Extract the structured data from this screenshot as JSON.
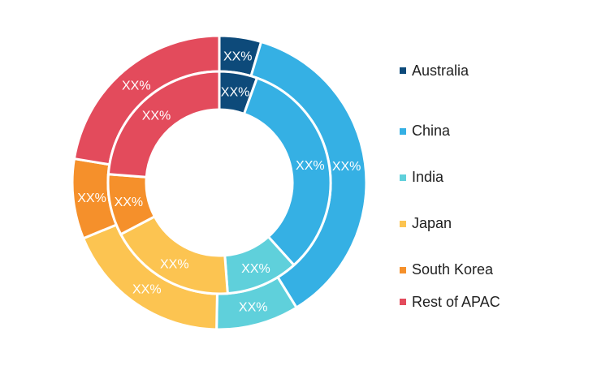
{
  "chart_data": {
    "type": "pie",
    "variant": "nested-donut",
    "title": "",
    "categories": [
      "Australia",
      "China",
      "India",
      "Japan",
      "South Korea",
      "Rest of APAC"
    ],
    "colors": [
      "#0d4a7a",
      "#35b0e4",
      "#5fd0db",
      "#fcc451",
      "#f5902b",
      "#e34b5c"
    ],
    "series": [
      {
        "ring": "outer",
        "values": [
          4.6,
          36.6,
          9.1,
          18.5,
          8.8,
          22.4
        ],
        "labels": [
          "XX%",
          "XX%",
          "XX%",
          "XX%",
          "XX%",
          "XX%"
        ]
      },
      {
        "ring": "inner",
        "values": [
          5.5,
          32.8,
          10.5,
          18.5,
          8.9,
          23.8
        ],
        "labels": [
          "XX%",
          "XX%",
          "XX%",
          "XX%",
          "XX%",
          "XX%"
        ]
      }
    ],
    "legend_position": "right"
  }
}
